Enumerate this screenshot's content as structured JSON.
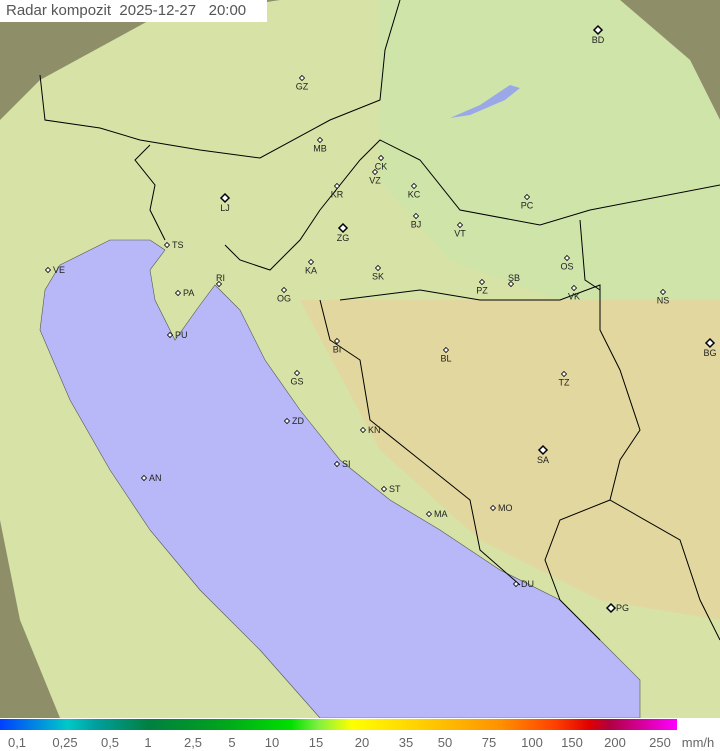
{
  "title": "Radar kompozit  2025-12-27   20:00",
  "legend": {
    "unit": "mm/h",
    "ticks": [
      "0,1",
      "0,25",
      "0,5",
      "1",
      "2,5",
      "5",
      "10",
      "15",
      "20",
      "35",
      "50",
      "75",
      "100",
      "150",
      "200",
      "250"
    ]
  },
  "colors": {
    "sea": "#b8b8f8",
    "land": "#d8e4a8",
    "outside": "#9a9a70",
    "border": "#000000"
  },
  "cities": [
    {
      "code": "GZ",
      "big": false
    },
    {
      "code": "BD",
      "big": true
    },
    {
      "code": "MB",
      "big": false
    },
    {
      "code": "CK",
      "big": false
    },
    {
      "code": "VZ",
      "big": false
    },
    {
      "code": "KR",
      "big": false
    },
    {
      "code": "KC",
      "big": false
    },
    {
      "code": "PC",
      "big": false
    },
    {
      "code": "LJ",
      "big": true
    },
    {
      "code": "BJ",
      "big": false
    },
    {
      "code": "VT",
      "big": false
    },
    {
      "code": "ZG",
      "big": true
    },
    {
      "code": "TS",
      "big": false
    },
    {
      "code": "VE",
      "big": false
    },
    {
      "code": "KA",
      "big": false
    },
    {
      "code": "SK",
      "big": false
    },
    {
      "code": "OS",
      "big": false
    },
    {
      "code": "RI",
      "big": false
    },
    {
      "code": "PZ",
      "big": false
    },
    {
      "code": "SB",
      "big": false
    },
    {
      "code": "VK",
      "big": false
    },
    {
      "code": "NS",
      "big": false
    },
    {
      "code": "PA",
      "big": false
    },
    {
      "code": "OG",
      "big": false
    },
    {
      "code": "PU",
      "big": false
    },
    {
      "code": "BI",
      "big": false
    },
    {
      "code": "BG",
      "big": true
    },
    {
      "code": "BL",
      "big": false
    },
    {
      "code": "GS",
      "big": false
    },
    {
      "code": "TZ",
      "big": false
    },
    {
      "code": "ZD",
      "big": false
    },
    {
      "code": "KN",
      "big": false
    },
    {
      "code": "SA",
      "big": true
    },
    {
      "code": "SI",
      "big": false
    },
    {
      "code": "AN",
      "big": false
    },
    {
      "code": "ST",
      "big": false
    },
    {
      "code": "MO",
      "big": false
    },
    {
      "code": "MA",
      "big": false
    },
    {
      "code": "DU",
      "big": false
    },
    {
      "code": "PG",
      "big": true
    }
  ]
}
